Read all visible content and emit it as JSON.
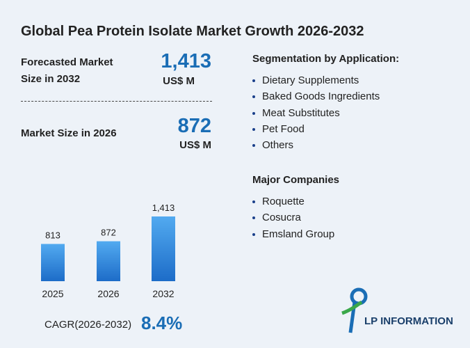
{
  "title": "Global Pea Protein Isolate Market Growth 2026-2032",
  "forecast": {
    "label": "Forecasted Market Size in 2032",
    "value": "1,413",
    "unit": "US$ M"
  },
  "current": {
    "label": "Market Size in 2026",
    "value": "872",
    "unit": "US$ M"
  },
  "segmentation": {
    "heading": "Segmentation by Application:",
    "items": [
      "Dietary Supplements",
      "Baked Goods Ingredients",
      "Meat Substitutes",
      "Pet Food",
      "Others"
    ]
  },
  "companies": {
    "heading": "Major Companies",
    "items": [
      "Roquette",
      "Cosucra",
      "Emsland Group"
    ]
  },
  "cagr": {
    "label": "CAGR(2026-2032)",
    "value": "8.4%"
  },
  "logo": "LP INFORMATION",
  "chart_data": {
    "type": "bar",
    "categories": [
      "2025",
      "2026",
      "2032"
    ],
    "values": [
      813,
      872,
      1413
    ],
    "value_labels": [
      "813",
      "872",
      "1,413"
    ],
    "color": "#2a7fd6"
  }
}
